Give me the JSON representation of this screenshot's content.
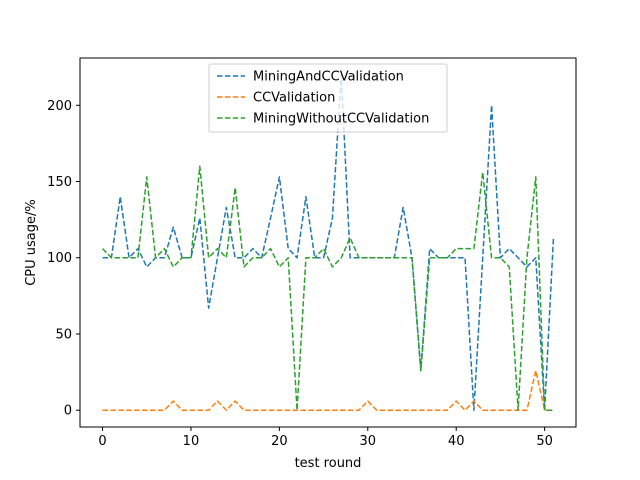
{
  "chart_data": {
    "type": "line",
    "xlabel": "test round",
    "ylabel": "CPU usage/%",
    "xlim": [
      -2.55,
      53.55
    ],
    "ylim": [
      -11,
      231
    ],
    "xticks": [
      0,
      10,
      20,
      30,
      40,
      50
    ],
    "yticks": [
      0,
      50,
      100,
      150,
      200
    ],
    "grid": false,
    "legend_position": "top-center",
    "x": [
      0,
      1,
      2,
      3,
      4,
      5,
      6,
      7,
      8,
      9,
      10,
      11,
      12,
      13,
      14,
      15,
      16,
      17,
      18,
      19,
      20,
      21,
      22,
      23,
      24,
      25,
      26,
      27,
      28,
      29,
      30,
      31,
      32,
      33,
      34,
      35,
      36,
      37,
      38,
      39,
      40,
      41,
      42,
      43,
      44,
      45,
      46,
      47,
      48,
      49,
      50,
      51
    ],
    "series": [
      {
        "name": "MiningAndCCValidation",
        "color": "#1f77b4",
        "values": [
          100,
          100,
          140,
          100,
          106,
          94,
          100,
          100,
          120,
          100,
          100,
          126,
          67,
          100,
          133,
          100,
          100,
          106,
          100,
          126,
          153,
          106,
          100,
          140,
          100,
          100,
          126,
          220,
          100,
          100,
          100,
          100,
          100,
          100,
          133,
          100,
          26,
          106,
          100,
          100,
          100,
          100,
          0,
          100,
          200,
          100,
          106,
          100,
          94,
          100,
          0,
          113
        ]
      },
      {
        "name": "CCValidation",
        "color": "#ff7f0e",
        "values": [
          0,
          0,
          0,
          0,
          0,
          0,
          0,
          0,
          6,
          0,
          0,
          0,
          0,
          6,
          0,
          6,
          0,
          0,
          0,
          0,
          0,
          0,
          0,
          0,
          0,
          0,
          0,
          0,
          0,
          0,
          6,
          0,
          0,
          0,
          0,
          0,
          0,
          0,
          0,
          0,
          6,
          0,
          6,
          0,
          0,
          0,
          0,
          0,
          0,
          26,
          0,
          0
        ]
      },
      {
        "name": "MiningWithoutCCValidation",
        "color": "#2ca02c",
        "values": [
          106,
          100,
          100,
          100,
          100,
          153,
          100,
          106,
          94,
          100,
          100,
          160,
          100,
          106,
          100,
          146,
          94,
          100,
          100,
          106,
          94,
          100,
          0,
          100,
          100,
          106,
          94,
          100,
          113,
          100,
          100,
          100,
          100,
          100,
          100,
          100,
          26,
          100,
          100,
          100,
          106,
          106,
          106,
          156,
          100,
          100,
          94,
          0,
          100,
          153,
          0,
          0
        ]
      }
    ]
  }
}
